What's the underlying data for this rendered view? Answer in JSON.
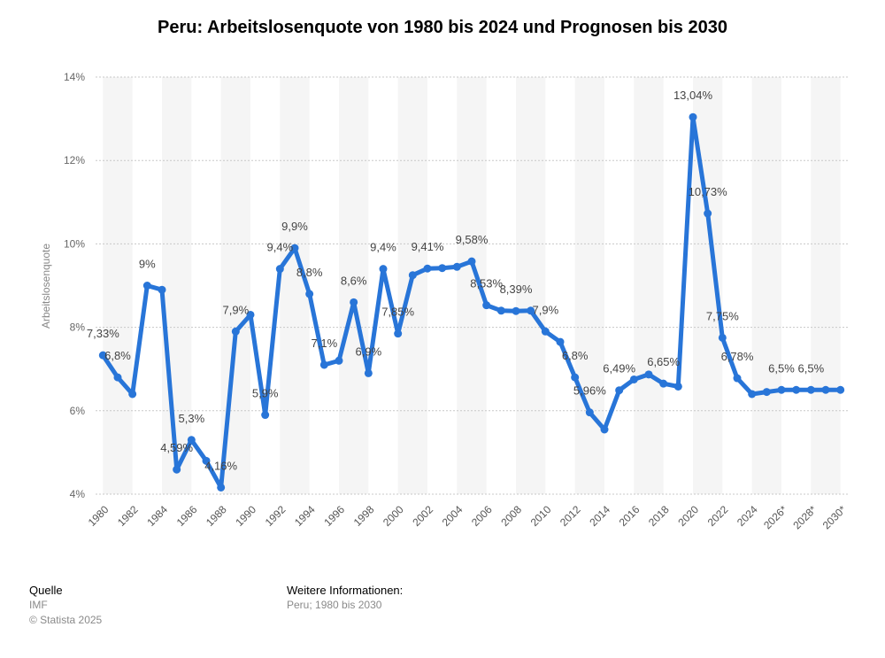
{
  "title": "Peru: Arbeitslosenquote von 1980 bis 2024 und Prognosen bis 2030",
  "footer": {
    "source_heading": "Quelle",
    "source": "IMF",
    "copyright": "© Statista 2025",
    "info_heading": "Weitere Informationen:",
    "info": "Peru; 1980 bis 2030"
  },
  "colors": {
    "line": "#2875d8",
    "band": "#f5f5f5",
    "grid": "#c8c8c8",
    "text": "#444444"
  },
  "chart_data": {
    "type": "line",
    "title": "Peru: Arbeitslosenquote von 1980 bis 2024 und Prognosen bis 2030",
    "xlabel": "",
    "ylabel": "Arbeitslosenquote",
    "ylim": [
      4,
      14
    ],
    "yticks": [
      4,
      6,
      8,
      10,
      12,
      14
    ],
    "ytick_labels": [
      "4%",
      "6%",
      "8%",
      "10%",
      "12%",
      "14%"
    ],
    "x": [
      "1980",
      "1981",
      "1982",
      "1983",
      "1984",
      "1985",
      "1986",
      "1987",
      "1988",
      "1989",
      "1990",
      "1991",
      "1992",
      "1993",
      "1994",
      "1995",
      "1996",
      "1997",
      "1998",
      "1999",
      "2000",
      "2001",
      "2002",
      "2003",
      "2004",
      "2005",
      "2006",
      "2007",
      "2008",
      "2009",
      "2010",
      "2011",
      "2012",
      "2013",
      "2014",
      "2015",
      "2016",
      "2017",
      "2018",
      "2019",
      "2020",
      "2021",
      "2022",
      "2023",
      "2024",
      "2025*",
      "2026*",
      "2027*",
      "2028*",
      "2029*",
      "2030*"
    ],
    "xtick_labels": [
      "1980",
      "1982",
      "1984",
      "1986",
      "1988",
      "1990",
      "1992",
      "1994",
      "1996",
      "1998",
      "2000",
      "2002",
      "2004",
      "2006",
      "2008",
      "2010",
      "2012",
      "2014",
      "2016",
      "2018",
      "2020",
      "2022",
      "2024",
      "2026*",
      "2028*",
      "2030*"
    ],
    "series": [
      {
        "values": [
          7.33,
          6.8,
          6.4,
          9.0,
          8.9,
          4.59,
          5.3,
          4.8,
          4.16,
          7.9,
          8.3,
          5.9,
          9.4,
          9.9,
          8.8,
          7.1,
          7.2,
          8.6,
          6.9,
          9.4,
          7.85,
          9.25,
          9.41,
          9.42,
          9.45,
          9.58,
          8.53,
          8.4,
          8.39,
          8.4,
          7.9,
          7.65,
          6.8,
          5.96,
          5.55,
          6.49,
          6.75,
          6.87,
          6.65,
          6.58,
          13.04,
          10.73,
          7.75,
          6.78,
          6.4,
          6.45,
          6.5,
          6.5,
          6.5,
          6.5,
          6.5
        ]
      }
    ],
    "data_labels": [
      {
        "i": 0,
        "text": "7,33%"
      },
      {
        "i": 1,
        "text": "6,8%"
      },
      {
        "i": 3,
        "text": "9%"
      },
      {
        "i": 5,
        "text": "4,59%"
      },
      {
        "i": 6,
        "text": "5,3%"
      },
      {
        "i": 8,
        "text": "4,16%"
      },
      {
        "i": 9,
        "text": "7,9%"
      },
      {
        "i": 11,
        "text": "5,9%"
      },
      {
        "i": 12,
        "text": "9,4%"
      },
      {
        "i": 13,
        "text": "9,9%"
      },
      {
        "i": 14,
        "text": "8,8%"
      },
      {
        "i": 15,
        "text": "7,1%"
      },
      {
        "i": 17,
        "text": "8,6%"
      },
      {
        "i": 18,
        "text": "6,9%"
      },
      {
        "i": 19,
        "text": "9,4%"
      },
      {
        "i": 20,
        "text": "7,85%"
      },
      {
        "i": 22,
        "text": "9,41%"
      },
      {
        "i": 25,
        "text": "9,58%"
      },
      {
        "i": 26,
        "text": "8,53%"
      },
      {
        "i": 28,
        "text": "8,39%"
      },
      {
        "i": 30,
        "text": "7,9%"
      },
      {
        "i": 32,
        "text": "6,8%"
      },
      {
        "i": 33,
        "text": "5,96%"
      },
      {
        "i": 35,
        "text": "6,49%"
      },
      {
        "i": 38,
        "text": "6,65%"
      },
      {
        "i": 40,
        "text": "13,04%"
      },
      {
        "i": 41,
        "text": "10,73%"
      },
      {
        "i": 42,
        "text": "7,75%"
      },
      {
        "i": 43,
        "text": "6,78%"
      },
      {
        "i": 46,
        "text": "6,5%"
      },
      {
        "i": 48,
        "text": "6,5%"
      }
    ],
    "grid": true,
    "legend": "none"
  }
}
